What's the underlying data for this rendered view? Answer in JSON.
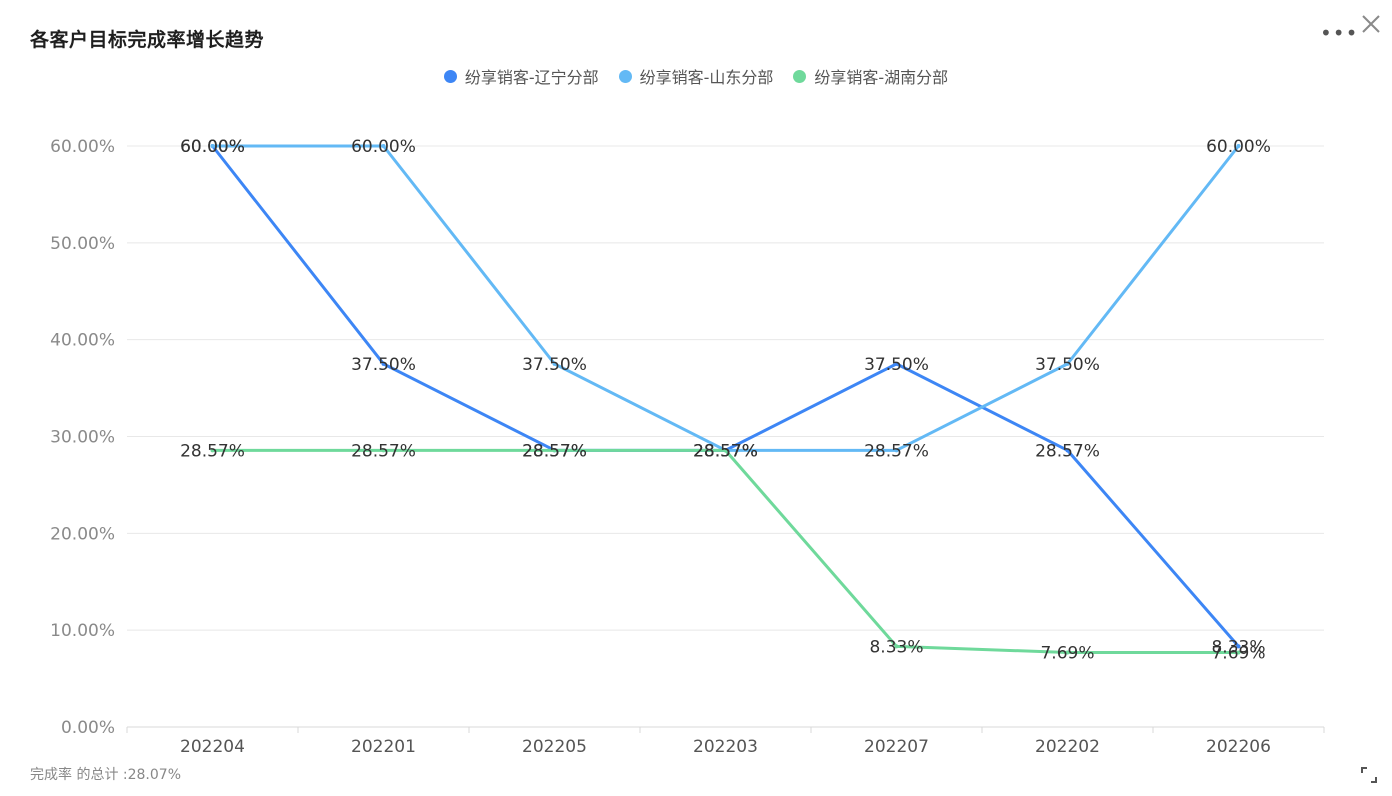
{
  "title": "各客户目标完成率增长趋势",
  "more_label": "•••",
  "footer_note": "完成率 的总计 :28.07%",
  "legend": [
    {
      "name": "纷享销客-辽宁分部",
      "color": "#3d86f5"
    },
    {
      "name": "纷享销客-山东分部",
      "color": "#63b9f5"
    },
    {
      "name": "纷享销客-湖南分部",
      "color": "#6fd99b"
    }
  ],
  "chart_data": {
    "type": "line",
    "title": "各客户目标完成率增长趋势",
    "x": [
      "202204",
      "202201",
      "202205",
      "202203",
      "202207",
      "202202",
      "202206"
    ],
    "ylim": [
      0,
      60
    ],
    "yticks": [
      "0.00%",
      "10.00%",
      "20.00%",
      "30.00%",
      "40.00%",
      "50.00%",
      "60.00%"
    ],
    "grid": true,
    "legend_position": "top",
    "series": [
      {
        "name": "纷享销客-辽宁分部",
        "color": "#3d86f5",
        "values": [
          60.0,
          37.5,
          28.57,
          28.57,
          37.5,
          28.57,
          8.33
        ],
        "labels": [
          "60.00%",
          "37.50%",
          "28.57%",
          "28.57%",
          "37.50%",
          "28.57%",
          "8.33%"
        ]
      },
      {
        "name": "纷享销客-山东分部",
        "color": "#63b9f5",
        "values": [
          60.0,
          60.0,
          37.5,
          28.57,
          28.57,
          37.5,
          60.0
        ],
        "labels": [
          "60.00%",
          "60.00%",
          "37.50%",
          "28.57%",
          "28.57%",
          "37.50%",
          "60.00%"
        ]
      },
      {
        "name": "纷享销客-湖南分部",
        "color": "#6fd99b",
        "values": [
          28.57,
          28.57,
          28.57,
          28.57,
          8.33,
          7.69,
          7.69
        ],
        "labels": [
          "28.57%",
          "28.57%",
          "28.57%",
          "28.57%",
          "8.33%",
          "7.69%",
          "7.69%"
        ]
      }
    ]
  }
}
